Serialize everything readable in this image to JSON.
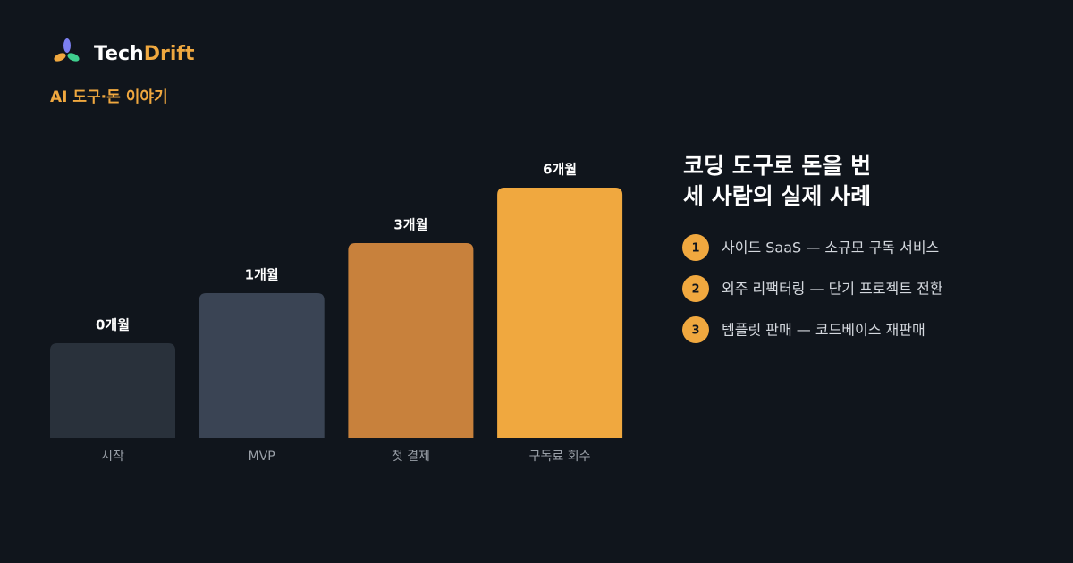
{
  "brand": {
    "name_first": "Tech",
    "name_second": "Drift"
  },
  "tagline": "AI 도구·돈 이야기",
  "steps": [
    {
      "label": "0개월",
      "name": "시작"
    },
    {
      "label": "1개월",
      "name": "MVP"
    },
    {
      "label": "3개월",
      "name": "첫 결제"
    },
    {
      "label": "6개월",
      "name": "구독료 회수"
    }
  ],
  "heading": [
    "코딩 도구로 돈을 번",
    "세 사람의 실제 사례"
  ],
  "cases": [
    {
      "number": "1",
      "text": "사이드 SaaS — 소규모 구독 서비스"
    },
    {
      "number": "2",
      "text": "외주 리팩터링 — 단기 프로젝트 전환"
    },
    {
      "number": "3",
      "text": "템플릿 판매 — 코드베이스 재판매"
    }
  ]
}
